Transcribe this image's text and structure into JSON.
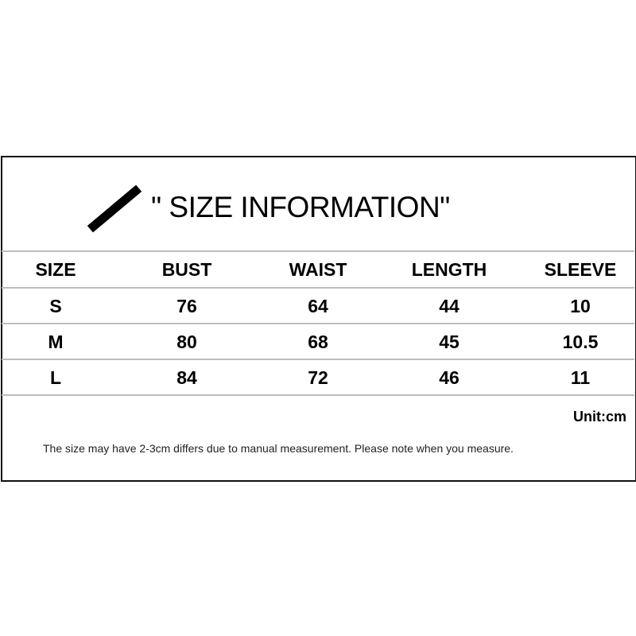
{
  "title": "\" SIZE INFORMATION\"",
  "table": {
    "headers": [
      "SIZE",
      "BUST",
      "WAIST",
      "LENGTH",
      "SLEEVE"
    ],
    "rows": [
      [
        "S",
        "76",
        "64",
        "44",
        "10"
      ],
      [
        "M",
        "80",
        "68",
        "45",
        "10.5"
      ],
      [
        "L",
        "84",
        "72",
        "46",
        "11"
      ]
    ]
  },
  "unit": "Unit:cm",
  "note": "The size may have 2-3cm differs due to manual measurement. Please note when you measure."
}
